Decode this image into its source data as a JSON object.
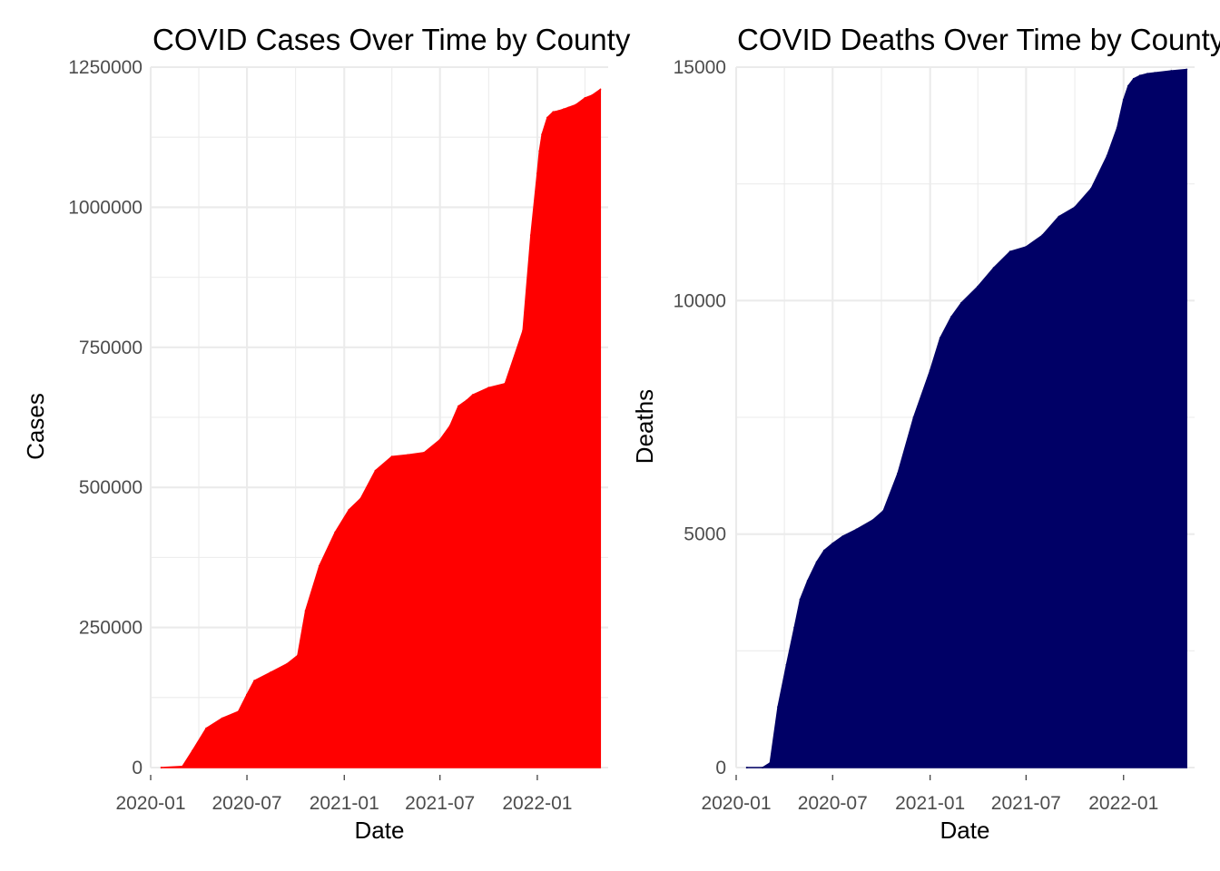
{
  "chart_data": [
    {
      "type": "area",
      "title": "COVID Cases Over Time by County",
      "xlabel": "Date",
      "ylabel": "Cases",
      "fill_color": "#FF0000",
      "grid": true,
      "xlim": [
        "2020-01-01",
        "2022-05-15"
      ],
      "ylim": [
        0,
        1250000
      ],
      "x_ticks": [
        "2020-01",
        "2020-07",
        "2021-01",
        "2021-07",
        "2022-01"
      ],
      "y_ticks": [
        "0",
        "250000",
        "500000",
        "750000",
        "1000000",
        "1250000"
      ],
      "x": [
        "2020-01-21",
        "2020-03-01",
        "2020-03-20",
        "2020-04-15",
        "2020-05-15",
        "2020-06-15",
        "2020-07-01",
        "2020-07-15",
        "2020-08-15",
        "2020-09-15",
        "2020-10-05",
        "2020-10-20",
        "2020-11-15",
        "2020-12-15",
        "2021-01-10",
        "2021-02-01",
        "2021-03-01",
        "2021-04-01",
        "2021-05-01",
        "2021-06-01",
        "2021-07-01",
        "2021-07-20",
        "2021-08-05",
        "2021-08-20",
        "2021-09-01",
        "2021-10-01",
        "2021-11-01",
        "2021-12-05",
        "2021-12-20",
        "2022-01-01",
        "2022-01-05",
        "2022-01-10",
        "2022-01-20",
        "2022-01-31",
        "2022-02-10",
        "2022-02-20",
        "2022-03-01",
        "2022-03-15",
        "2022-04-01",
        "2022-04-15",
        "2022-04-30"
      ],
      "values": [
        0,
        2000,
        30000,
        70000,
        88000,
        100000,
        130000,
        155000,
        170000,
        185000,
        200000,
        280000,
        360000,
        420000,
        460000,
        480000,
        530000,
        555000,
        558000,
        562000,
        585000,
        610000,
        645000,
        655000,
        665000,
        678000,
        685000,
        780000,
        950000,
        1060000,
        1100000,
        1130000,
        1160000,
        1170000,
        1172000,
        1175000,
        1178000,
        1183000,
        1195000,
        1200000,
        1210000
      ]
    },
    {
      "type": "area",
      "title": "COVID Deaths Over Time by County",
      "xlabel": "Date",
      "ylabel": "Deaths",
      "fill_color": "#000066",
      "grid": true,
      "xlim": [
        "2020-01-01",
        "2022-05-15"
      ],
      "ylim": [
        0,
        15000
      ],
      "x_ticks": [
        "2020-01",
        "2020-07",
        "2021-01",
        "2021-07",
        "2022-01"
      ],
      "y_ticks": [
        "0",
        "5000",
        "10000",
        "15000"
      ],
      "x": [
        "2020-01-21",
        "2020-02-20",
        "2020-03-05",
        "2020-03-20",
        "2020-04-05",
        "2020-04-20",
        "2020-05-01",
        "2020-05-15",
        "2020-06-01",
        "2020-06-15",
        "2020-07-01",
        "2020-07-20",
        "2020-08-15",
        "2020-09-15",
        "2020-10-05",
        "2020-11-01",
        "2020-12-01",
        "2021-01-01",
        "2021-01-20",
        "2021-02-10",
        "2021-03-01",
        "2021-04-01",
        "2021-05-01",
        "2021-06-01",
        "2021-07-01",
        "2021-08-01",
        "2021-09-01",
        "2021-10-01",
        "2021-11-01",
        "2021-12-01",
        "2021-12-20",
        "2022-01-01",
        "2022-01-10",
        "2022-01-20",
        "2022-02-01",
        "2022-02-15",
        "2022-03-01",
        "2022-04-01",
        "2022-04-30"
      ],
      "values": [
        0,
        0,
        100,
        1300,
        2200,
        3000,
        3600,
        4000,
        4400,
        4650,
        4800,
        4950,
        5100,
        5300,
        5500,
        6300,
        7500,
        8500,
        9200,
        9650,
        9950,
        10300,
        10700,
        11050,
        11150,
        11400,
        11800,
        12000,
        12400,
        13100,
        13700,
        14300,
        14600,
        14750,
        14820,
        14860,
        14880,
        14920,
        14950
      ]
    }
  ]
}
